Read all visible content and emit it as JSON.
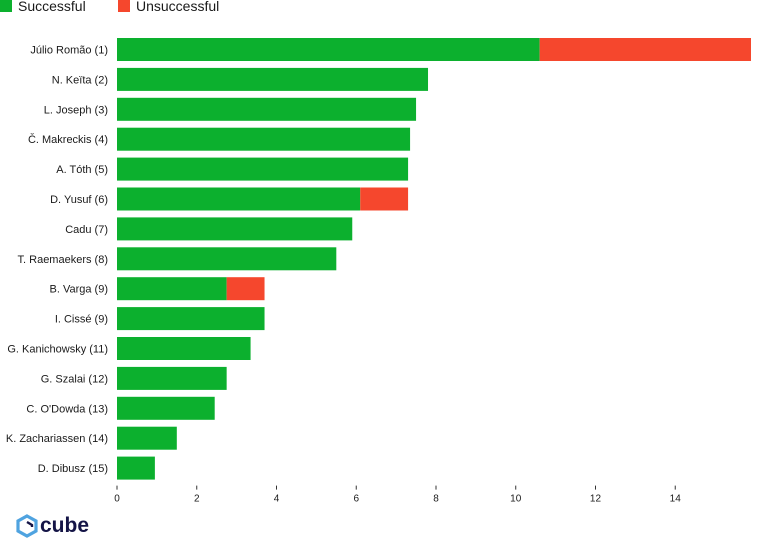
{
  "chart_data": {
    "type": "bar",
    "orientation": "horizontal",
    "stacked": true,
    "categories": [
      "Júlio Romão (1)",
      "N. Keïta (2)",
      "L. Joseph (3)",
      "Č. Makreckis (4)",
      "A. Tóth (5)",
      "D. Yusuf (6)",
      "Cadu (7)",
      "T. Raemaekers (8)",
      "B. Varga (9)",
      "I. Cissé (9)",
      "G. Kanichowsky (11)",
      "G. Szalai (12)",
      "C. O'Dowda (13)",
      "K. Zachariassen (14)",
      "D. Dibusz (15)"
    ],
    "series": [
      {
        "name": "Successful",
        "color": "#0cb02e",
        "values": [
          10.6,
          7.8,
          7.5,
          7.35,
          7.3,
          6.1,
          5.9,
          5.5,
          2.75,
          3.7,
          3.35,
          2.75,
          2.45,
          1.5,
          0.95
        ]
      },
      {
        "name": "Unsuccessful",
        "color": "#f5472d",
        "values": [
          5.3,
          0,
          0,
          0,
          0,
          1.2,
          0,
          0,
          0.95,
          0,
          0,
          0,
          0,
          0,
          0
        ]
      }
    ],
    "xticks": [
      0,
      2,
      4,
      6,
      8,
      10,
      12,
      14
    ],
    "xlim": [
      0,
      15.9
    ],
    "grid": false,
    "legend": "top-left",
    "title": "",
    "xlabel": "",
    "ylabel": ""
  },
  "logo": {
    "text": "cube",
    "color": "#141446",
    "accent": "#4fa3e0"
  }
}
